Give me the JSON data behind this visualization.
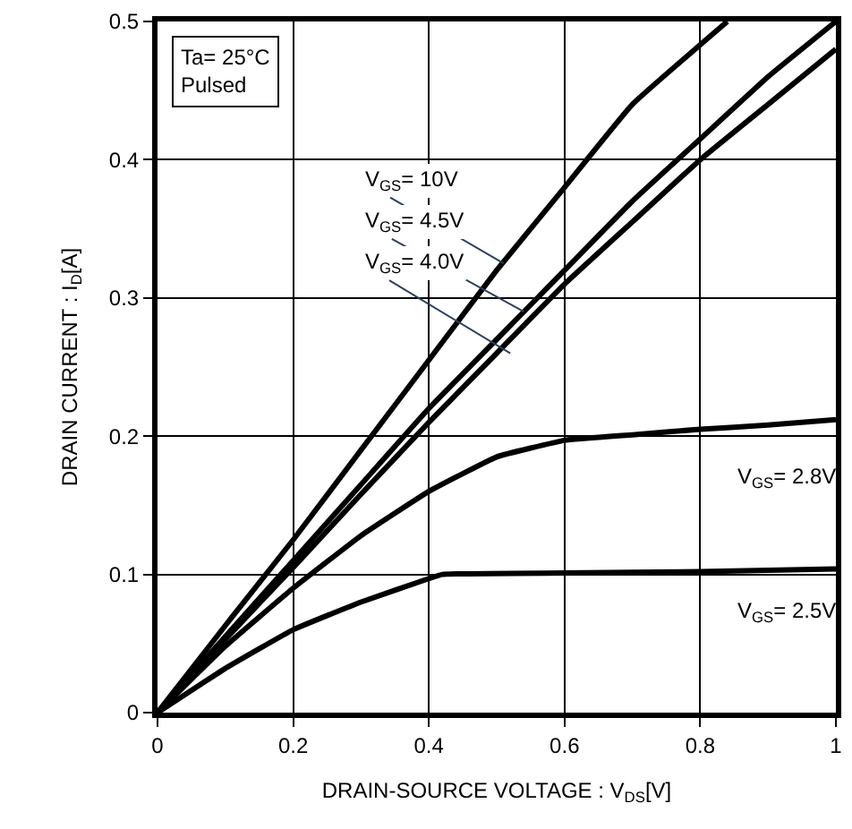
{
  "chart_data": {
    "type": "line",
    "xlabel": "DRAIN-SOURCE VOLTAGE : V$_{DS}$[V]",
    "ylabel": "DRAIN CURRENT : I$_{D}$[A]",
    "xlim": [
      0,
      1
    ],
    "ylim": [
      0,
      0.5
    ],
    "xticks": [
      0,
      0.2,
      0.4,
      0.6,
      0.8,
      1
    ],
    "yticks": [
      0,
      0.1,
      0.2,
      0.3,
      0.4,
      0.5
    ],
    "grid": true,
    "legend": false,
    "marker": "none",
    "line_style": "solid",
    "series": [
      {
        "color": "#000000",
        "x": [
          0,
          0.1,
          0.2,
          0.3,
          0.4,
          0.5,
          0.6,
          0.7,
          0.84
        ],
        "values": [
          0,
          0.063,
          0.125,
          0.19,
          0.255,
          0.32,
          0.38,
          0.44,
          0.5
        ]
      },
      {
        "color": "#000000",
        "x": [
          0,
          0.1,
          0.2,
          0.3,
          0.4,
          0.5,
          0.6,
          0.7,
          0.8,
          0.9,
          1.0
        ],
        "values": [
          0,
          0.055,
          0.11,
          0.165,
          0.22,
          0.27,
          0.32,
          0.37,
          0.415,
          0.46,
          0.5
        ]
      },
      {
        "color": "#000000",
        "x": [
          0,
          0.1,
          0.2,
          0.3,
          0.4,
          0.5,
          0.6,
          0.7,
          0.8,
          0.9,
          1.0
        ],
        "values": [
          0,
          0.053,
          0.105,
          0.158,
          0.21,
          0.26,
          0.31,
          0.355,
          0.4,
          0.44,
          0.48
        ]
      },
      {
        "color": "#000000",
        "x": [
          0,
          0.1,
          0.2,
          0.3,
          0.4,
          0.5,
          0.6,
          0.7,
          0.8,
          0.9,
          1.0
        ],
        "values": [
          0,
          0.048,
          0.09,
          0.128,
          0.16,
          0.185,
          0.197,
          0.201,
          0.205,
          0.208,
          0.212
        ]
      },
      {
        "color": "#000000",
        "x": [
          0,
          0.1,
          0.2,
          0.3,
          0.4,
          0.42,
          0.6,
          0.8,
          1.0
        ],
        "values": [
          0,
          0.032,
          0.06,
          0.08,
          0.097,
          0.1,
          0.101,
          0.102,
          0.104
        ]
      }
    ],
    "annotations": [
      "Ta= 25°C\nPulsed",
      {
        "text": "V$_{GS}$= 10V",
        "x": 0.51,
        "y": 0.325
      },
      {
        "text": "V$_{GS}$= 4.5V",
        "x": 0.54,
        "y": 0.29
      },
      {
        "text": "V$_{GS}$= 4.0V",
        "x": 0.52,
        "y": 0.26
      },
      "V$_{GS}$= 2.8V",
      "V$_{GS}$= 2.5V"
    ]
  }
}
